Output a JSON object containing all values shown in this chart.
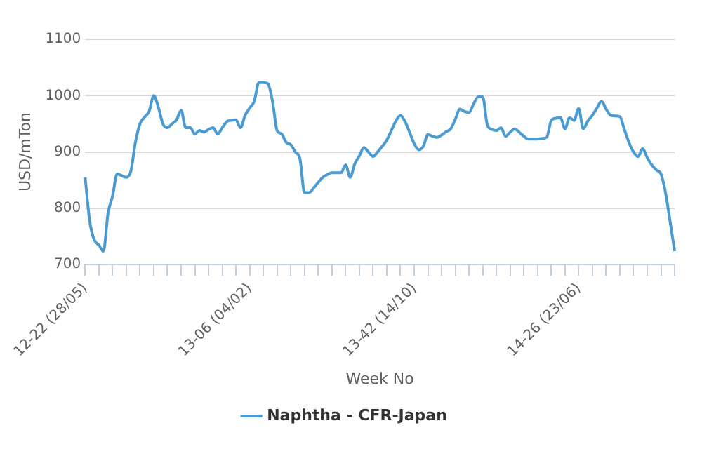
{
  "chart_data": {
    "type": "line",
    "xlabel": "Week No",
    "ylabel": "USD/mTon",
    "ylim": [
      700,
      1100
    ],
    "yticks": [
      700,
      800,
      900,
      1000,
      1100
    ],
    "categories": [
      "12-22 (28/05)",
      null,
      null,
      null,
      null,
      null,
      null,
      null,
      null,
      null,
      null,
      null,
      null,
      null,
      null,
      null,
      null,
      null,
      null,
      null,
      null,
      null,
      null,
      null,
      null,
      null,
      null,
      null,
      null,
      null,
      null,
      null,
      null,
      null,
      null,
      null,
      "13-06 (04/02)",
      null,
      null,
      null,
      null,
      null,
      null,
      null,
      null,
      null,
      null,
      null,
      null,
      null,
      null,
      null,
      null,
      null,
      null,
      null,
      null,
      null,
      null,
      null,
      null,
      null,
      null,
      null,
      null,
      null,
      null,
      null,
      null,
      null,
      null,
      null,
      "13-42 (14/10)",
      null,
      null,
      null,
      null,
      null,
      null,
      null,
      null,
      null,
      null,
      null,
      null,
      null,
      null,
      null,
      null,
      null,
      null,
      null,
      null,
      null,
      null,
      null,
      null,
      null,
      null,
      null,
      null,
      null,
      null,
      null,
      null,
      null,
      null,
      null,
      "14-26 (23/06)",
      null,
      null,
      null,
      null,
      null,
      null,
      null,
      null,
      null,
      null,
      null,
      null,
      null,
      null,
      null,
      null,
      null,
      null,
      null,
      null,
      null
    ],
    "grid": "y",
    "legend": "bottom",
    "marker": "none",
    "line_style": "solid",
    "series": [
      {
        "name": "Naphtha - CFR-Japan",
        "color": "#4a9bd1",
        "values": [
          855,
          777,
          744,
          735,
          724,
          791,
          822,
          861,
          858,
          855,
          866,
          917,
          950,
          962,
          972,
          1000,
          980,
          950,
          943,
          950,
          957,
          974,
          943,
          943,
          932,
          938,
          935,
          940,
          943,
          932,
          943,
          954,
          956,
          957,
          943,
          965,
          978,
          990,
          1023,
          1023,
          1021,
          990,
          938,
          932,
          917,
          913,
          900,
          888,
          828,
          828,
          836,
          846,
          855,
          860,
          863,
          863,
          863,
          877,
          855,
          879,
          893,
          908,
          900,
          892,
          900,
          910,
          921,
          938,
          955,
          965,
          954,
          935,
          915,
          904,
          910,
          931,
          928,
          926,
          930,
          936,
          941,
          958,
          976,
          972,
          970,
          985,
          998,
          998,
          948,
          940,
          938,
          943,
          928,
          935,
          941,
          935,
          928,
          923,
          923,
          923,
          924,
          926,
          956,
          960,
          961,
          941,
          961,
          956,
          977,
          941,
          955,
          965,
          978,
          990,
          976,
          965,
          964,
          963,
          940,
          917,
          900,
          892,
          906,
          890,
          877,
          868,
          861,
          828,
          777,
          724
        ]
      }
    ]
  }
}
